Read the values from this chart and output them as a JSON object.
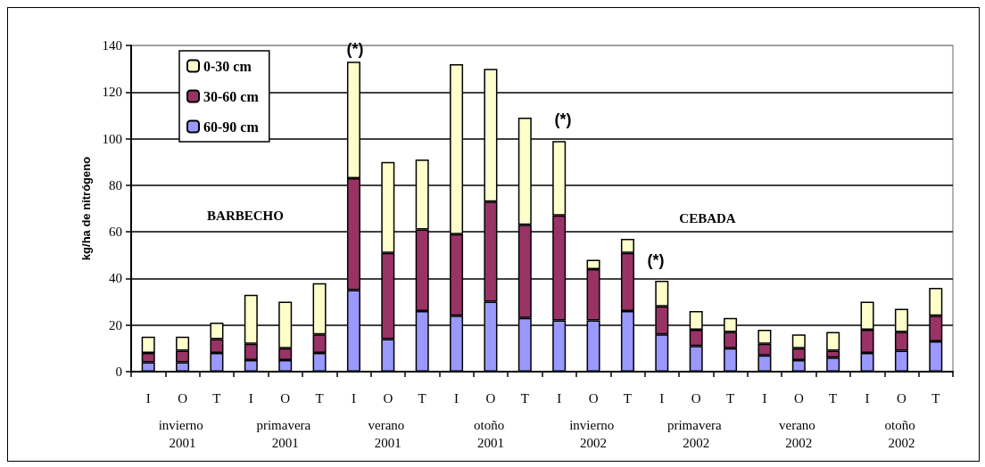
{
  "chart_data": {
    "type": "bar",
    "stacked": true,
    "ylabel": "kg/ha de nitrógeno",
    "categories": [
      "I",
      "O",
      "T",
      "I",
      "O",
      "T",
      "I",
      "O",
      "T",
      "I",
      "O",
      "T",
      "I",
      "O",
      "T",
      "I",
      "O",
      "T",
      "I",
      "O",
      "T",
      "I",
      "O",
      "T"
    ],
    "series": [
      {
        "name": "60-90 cm",
        "color": "#9999ff",
        "values": [
          4,
          4,
          8,
          5,
          5,
          8,
          35,
          14,
          26,
          24,
          30,
          23,
          22,
          22,
          26,
          16,
          11,
          10,
          7,
          5,
          6,
          8,
          9,
          13
        ]
      },
      {
        "name": "30-60 cm",
        "color": "#993366",
        "values": [
          4,
          5,
          6,
          7,
          5,
          8,
          48,
          37,
          35,
          35,
          43,
          40,
          45,
          22,
          25,
          12,
          7,
          7,
          5,
          5,
          3,
          10,
          8,
          11
        ]
      },
      {
        "name": "0-30 cm",
        "color": "#ffffcc",
        "values": [
          7,
          6,
          7,
          21,
          20,
          22,
          50,
          39,
          30,
          73,
          57,
          46,
          32,
          4,
          6,
          11,
          8,
          6,
          6,
          6,
          8,
          12,
          10,
          12
        ]
      }
    ],
    "ylim": [
      0,
      140
    ],
    "yticks": [
      0,
      20,
      40,
      60,
      80,
      100,
      120,
      140
    ],
    "grid": "y",
    "legend": "top left",
    "annotations": [
      "invierno 2001",
      "primavera 2001",
      "verano 2001",
      "otoño 2001",
      "invierno 2002",
      "primavera 2002",
      "verano 2002",
      "otoño 2002",
      "(*)",
      "(*)",
      "(*)",
      "BARBECHO",
      "CEBADA"
    ]
  }
}
